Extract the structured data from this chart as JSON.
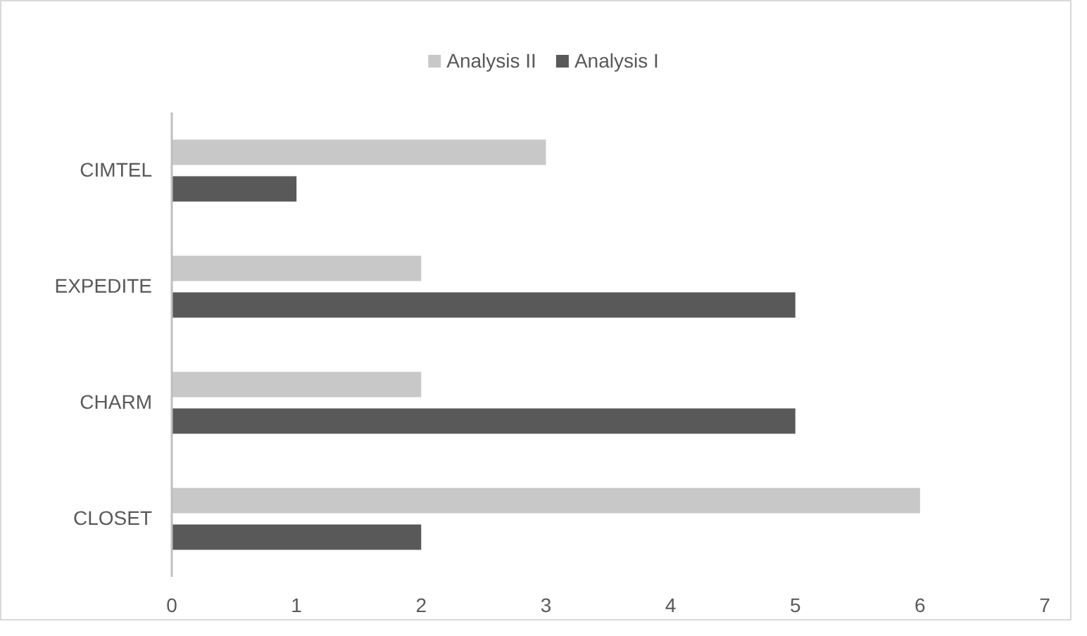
{
  "chart_data": {
    "type": "bar",
    "orientation": "horizontal",
    "categories": [
      "CIMTEL",
      "EXPEDITE",
      "CHARM",
      "CLOSET"
    ],
    "series": [
      {
        "name": "Analysis II",
        "color": "#c8c8c8",
        "values": [
          3,
          2,
          2,
          6
        ]
      },
      {
        "name": "Analysis I",
        "color": "#595959",
        "values": [
          1,
          5,
          5,
          2
        ]
      }
    ],
    "xlim": [
      0,
      7
    ],
    "xticks": [
      0,
      1,
      2,
      3,
      4,
      5,
      6,
      7
    ],
    "grid": false,
    "legend": "top"
  }
}
